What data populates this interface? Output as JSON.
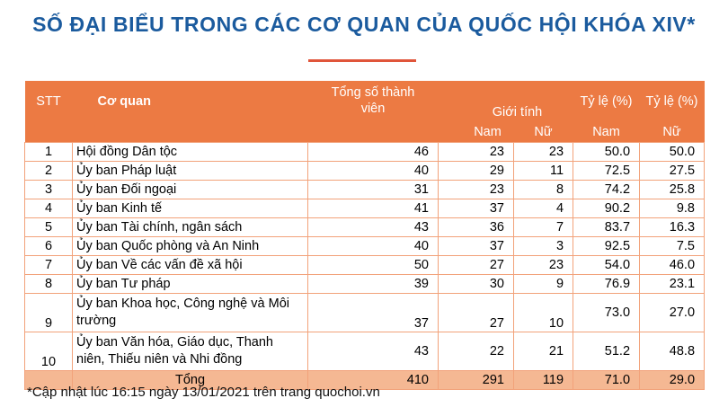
{
  "title": "SỐ ĐẠI BIỂU TRONG CÁC CƠ QUAN CỦA QUỐC HỘI KHÓA XIV*",
  "header": {
    "stt": "STT",
    "co_quan": "Cơ quan",
    "tong_so": "Tổng số thành viên",
    "gioi_tinh": "Giới tính",
    "nam": "Nam",
    "nu": "Nữ",
    "ty_le_nam_top": "Tỷ lệ (%)",
    "ty_le_nam": "Nam",
    "ty_le_nu_top": "Tỷ lệ (%)",
    "ty_le_nu": "Nữ"
  },
  "rows": [
    {
      "stt": "1",
      "name": "Hội đồng Dân tộc",
      "total": "46",
      "nam": "23",
      "nu": "23",
      "pnam": "50.0",
      "pnu": "50.0"
    },
    {
      "stt": "2",
      "name": "Ủy ban Pháp luật",
      "total": "40",
      "nam": "29",
      "nu": "11",
      "pnam": "72.5",
      "pnu": "27.5"
    },
    {
      "stt": "3",
      "name": "Ủy ban Đối ngoại",
      "total": "31",
      "nam": "23",
      "nu": "8",
      "pnam": "74.2",
      "pnu": "25.8"
    },
    {
      "stt": "4",
      "name": "Ủy ban Kinh tế",
      "total": "41",
      "nam": "37",
      "nu": "4",
      "pnam": "90.2",
      "pnu": "9.8"
    },
    {
      "stt": "5",
      "name": "Ủy ban Tài chính, ngân sách",
      "total": "43",
      "nam": "36",
      "nu": "7",
      "pnam": "83.7",
      "pnu": "16.3"
    },
    {
      "stt": "6",
      "name": "Ủy ban Quốc phòng và An Ninh",
      "total": "40",
      "nam": "37",
      "nu": "3",
      "pnam": "92.5",
      "pnu": "7.5"
    },
    {
      "stt": "7",
      "name": "Ủy ban Về các vấn đề xã hội",
      "total": "50",
      "nam": "27",
      "nu": "23",
      "pnam": "54.0",
      "pnu": "46.0"
    },
    {
      "stt": "8",
      "name": "Ủy ban Tư pháp",
      "total": "39",
      "nam": "30",
      "nu": "9",
      "pnam": "76.9",
      "pnu": "23.1"
    },
    {
      "stt": "9",
      "name": "Ủy ban Khoa học, Công nghệ và Môi trường",
      "total": "37",
      "nam": "27",
      "nu": "10",
      "pnam": "73.0",
      "pnu": "27.0"
    },
    {
      "stt": "10",
      "name": "Ủy ban Văn hóa, Giáo dục, Thanh niên, Thiếu niên và Nhi đồng",
      "total": "43",
      "nam": "22",
      "nu": "21",
      "pnam": "51.2",
      "pnu": "48.8"
    }
  ],
  "total_row": {
    "label": "Tổng",
    "total": "410",
    "nam": "291",
    "nu": "119",
    "pnam": "71.0",
    "pnu": "29.0"
  },
  "note": "*Cập nhật lúc 16:15 ngày 13/01/2021 trên trang quochoi.vn"
}
